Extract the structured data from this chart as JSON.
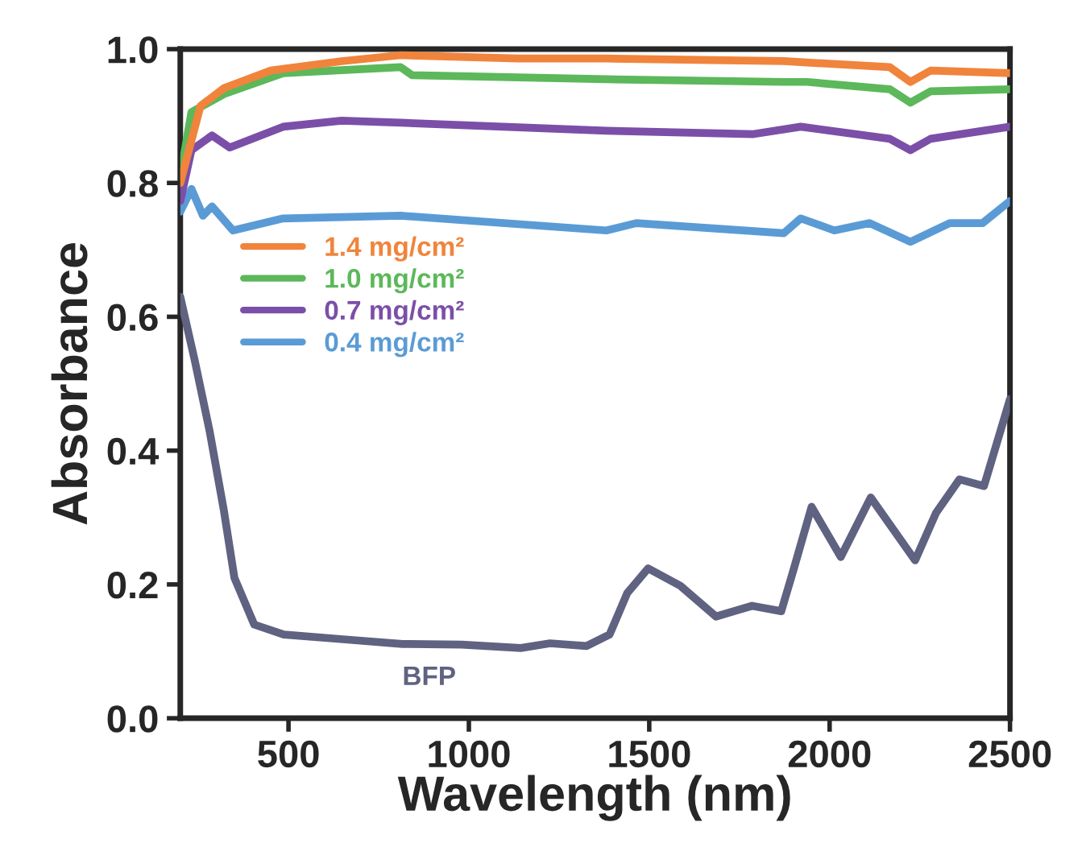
{
  "chart_data": {
    "type": "line",
    "xlabel": "Wavelength (nm)",
    "ylabel": "Absorbance",
    "xlim": [
      200,
      2500
    ],
    "xticks": [
      500,
      1000,
      1500,
      2000,
      2500
    ],
    "ylim": [
      0,
      1.0
    ],
    "yticks": [
      {
        "value": 0,
        "label": "0.0"
      },
      {
        "value": 0.2,
        "label": "0.2"
      },
      {
        "value": 0.4,
        "label": "0.4"
      },
      {
        "value": 0.6,
        "label": "0.6"
      },
      {
        "value": 0.8,
        "label": "0.8"
      },
      {
        "value": 1.0,
        "label": "1.0"
      }
    ],
    "grid": false,
    "legend": "center left",
    "marker": "none",
    "line_style": "solid",
    "annotations": [
      "BFP"
    ],
    "series": [
      {
        "name": "1.4 mg/cm²",
        "color": "#f0843c",
        "x": [
          200,
          256,
          322,
          451,
          647,
          811,
          1136,
          1381,
          1873,
          2167,
          2224,
          2280,
          2500
        ],
        "values": [
          0.8,
          0.915,
          0.942,
          0.968,
          0.982,
          0.991,
          0.986,
          0.986,
          0.982,
          0.973,
          0.951,
          0.968,
          0.964
        ]
      },
      {
        "name": "1.0 mg/cm²",
        "color": "#5cb85a",
        "x": [
          200,
          231,
          322,
          485,
          811,
          843,
          1381,
          1873,
          1937,
          2167,
          2224,
          2280,
          2500
        ],
        "values": [
          0.809,
          0.906,
          0.933,
          0.964,
          0.973,
          0.961,
          0.955,
          0.951,
          0.951,
          0.94,
          0.92,
          0.937,
          0.94
        ]
      },
      {
        "name": "0.7 mg/cm²",
        "color": "#7b4fa8",
        "x": [
          200,
          231,
          288,
          337,
          485,
          647,
          811,
          1381,
          1789,
          1920,
          2167,
          2224,
          2280,
          2500
        ],
        "values": [
          0.773,
          0.849,
          0.871,
          0.853,
          0.884,
          0.893,
          0.89,
          0.878,
          0.873,
          0.884,
          0.866,
          0.849,
          0.866,
          0.884
        ]
      },
      {
        "name": "0.4 mg/cm²",
        "color": "#5a9bd5",
        "x": [
          200,
          231,
          263,
          288,
          346,
          485,
          811,
          1381,
          1464,
          1873,
          1920,
          2013,
          2111,
          2224,
          2333,
          2424,
          2500
        ],
        "values": [
          0.757,
          0.791,
          0.751,
          0.765,
          0.729,
          0.747,
          0.751,
          0.729,
          0.74,
          0.725,
          0.747,
          0.729,
          0.74,
          0.712,
          0.74,
          0.74,
          0.773
        ]
      },
      {
        "color": "#5f6280",
        "x": [
          200,
          240,
          281,
          321,
          350,
          405,
          487,
          651,
          816,
          980,
          1144,
          1225,
          1326,
          1390,
          1439,
          1497,
          1586,
          1685,
          1785,
          1866,
          1900,
          1950,
          2031,
          2114,
          2237,
          2295,
          2360,
          2428,
          2500
        ],
        "values": [
          0.63,
          0.535,
          0.43,
          0.31,
          0.21,
          0.14,
          0.125,
          0.118,
          0.111,
          0.11,
          0.105,
          0.112,
          0.108,
          0.125,
          0.187,
          0.224,
          0.198,
          0.152,
          0.168,
          0.16,
          0.222,
          0.316,
          0.241,
          0.33,
          0.236,
          0.307,
          0.357,
          0.347,
          0.477
        ]
      }
    ]
  }
}
